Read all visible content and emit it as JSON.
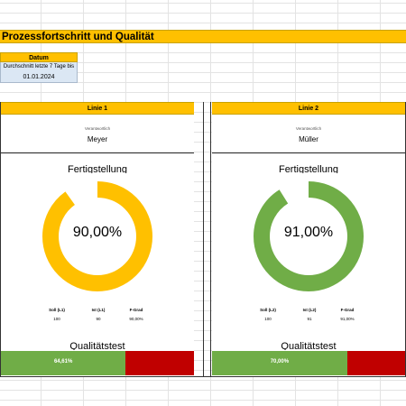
{
  "title": "Prozessfortschritt und Qualität",
  "date_box": {
    "header": "Datum",
    "subtitle": "Durchschnitt letzte 7 Tage bis",
    "value": "01.01.2024"
  },
  "lines": [
    {
      "header": "Linie 1",
      "responsible_label": "Verantwortlich",
      "responsible_name": "Meyer",
      "completion_title": "Fertigstellung",
      "completion_percent": 90,
      "completion_text": "90,00%",
      "ring_color": "#ffc000",
      "stats": {
        "headers": [
          "Soll (L1)",
          "Ist (L1)",
          "F-Grad"
        ],
        "values": [
          "100",
          "90",
          "90,00%"
        ]
      },
      "quality_title": "Qualitätstest",
      "quality_percent": 64.61,
      "quality_text": "64,61%"
    },
    {
      "header": "Linie 2",
      "responsible_label": "Verantwortlich",
      "responsible_name": "Müller",
      "completion_title": "Fertigstellung",
      "completion_percent": 91,
      "completion_text": "91,00%",
      "ring_color": "#70ad47",
      "stats": {
        "headers": [
          "Soll (L2)",
          "Ist (L2)",
          "F-Grad"
        ],
        "values": [
          "100",
          "91",
          "91,00%"
        ]
      },
      "quality_title": "Qualitätstest",
      "quality_percent": 70,
      "quality_text": "70,00%"
    }
  ],
  "colors": {
    "accent": "#ffc000",
    "good": "#70ad47",
    "bad": "#c00000",
    "date_fill": "#dbe7f4"
  }
}
